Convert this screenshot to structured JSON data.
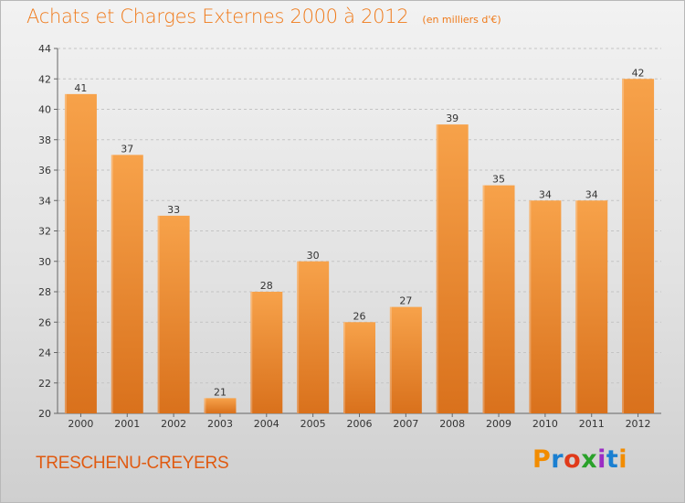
{
  "header": {
    "title": "Achats et Charges Externes 2000 à 2012",
    "subtitle": "(en milliers d'€)"
  },
  "footer": {
    "commune": "TRESCHENU-CREYERS",
    "logo_letters": [
      "P",
      "r",
      "o",
      "x",
      "i",
      "t",
      "i"
    ],
    "logo_colors": [
      "#f28c00",
      "#1a7fd1",
      "#e03a1a",
      "#2aa12a",
      "#9b2cc4",
      "#1a7fd1",
      "#f28c00"
    ]
  },
  "chart_data": {
    "type": "bar",
    "title": "Achats et Charges Externes 2000 à 2012",
    "subtitle": "(en milliers d'€)",
    "categories": [
      "2000",
      "2001",
      "2002",
      "2003",
      "2004",
      "2005",
      "2006",
      "2007",
      "2008",
      "2009",
      "2010",
      "2011",
      "2012"
    ],
    "values": [
      41,
      37,
      33,
      21,
      28,
      30,
      26,
      27,
      39,
      35,
      34,
      34,
      42
    ],
    "ylim": [
      20,
      44
    ],
    "yticks": [
      20,
      22,
      24,
      26,
      28,
      30,
      32,
      34,
      36,
      38,
      40,
      42,
      44
    ],
    "grid": "horizontal dashed",
    "bar_color_top": "#f7a24a",
    "bar_color_bottom": "#d9711c"
  }
}
